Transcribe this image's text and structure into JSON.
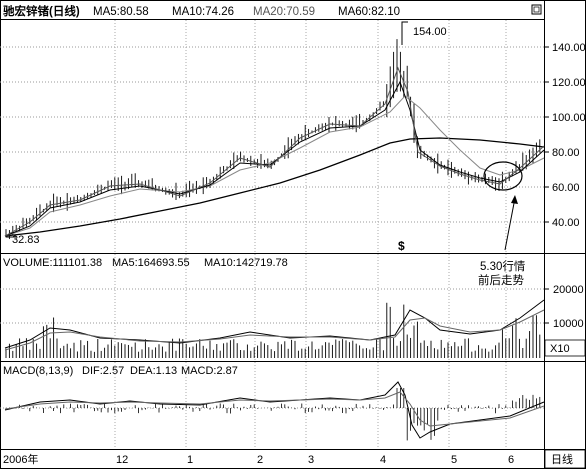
{
  "main_panel": {
    "title": "驰宏锌锗(日线)",
    "ma5": "MA5:80.58",
    "ma10": "MA10:74.26",
    "ma20": "MA20:70.59",
    "ma60": "MA60:82.10",
    "y_ticks": [
      "140.00",
      "120.00",
      "100.00",
      "80.00",
      "60.00",
      "40.00"
    ],
    "high_label": "154.00",
    "low_label": "32.83",
    "marker_glyph": "$",
    "annotation_line1": "5.30行情",
    "annotation_line2": "前后走势"
  },
  "volume_panel": {
    "volume": "VOLUME:111101.38",
    "ma5": "MA5:164693.55",
    "ma10": "MA10:142719.78",
    "y_ticks": [
      "20000",
      "10000"
    ],
    "unit": "X10"
  },
  "macd_panel": {
    "label": "MACD(8,13,9)",
    "dif": "DIF:2.57",
    "dea": "DEA:1.13",
    "macd": "MACD:2.87"
  },
  "time_axis": {
    "labels": [
      "2006年",
      "12",
      "1",
      "2",
      "3",
      "4",
      "5",
      "6"
    ],
    "period_button": "日线"
  },
  "colors": {
    "grid_dotted": "#8a8a8a",
    "line_dark": "#000000",
    "line_gray": "#777777",
    "background": "#ffffff"
  }
}
